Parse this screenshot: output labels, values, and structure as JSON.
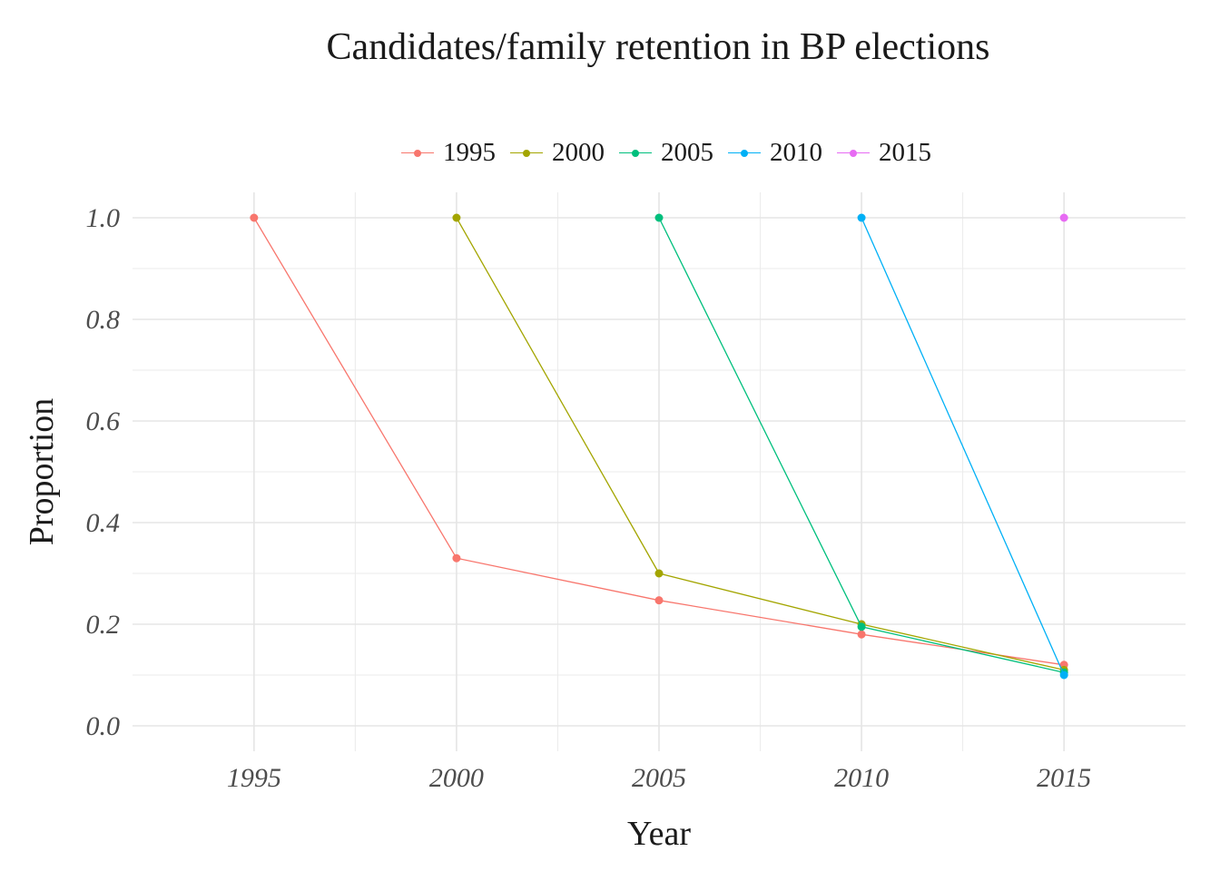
{
  "chart_data": {
    "type": "line",
    "title": "Candidates/family retention in BP elections",
    "xlabel": "Year",
    "ylabel": "Proportion",
    "xlim": [
      1992,
      2018
    ],
    "ylim": [
      -0.05,
      1.05
    ],
    "x_ticks": [
      "1995",
      "2000",
      "2005",
      "2010",
      "2015"
    ],
    "y_ticks": [
      "0.0",
      "0.2",
      "0.4",
      "0.6",
      "0.8",
      "1.0"
    ],
    "grid": true,
    "legend_position": "top",
    "series": [
      {
        "name": "1995",
        "color": "#F8766D",
        "x": [
          1995,
          2000,
          2005,
          2010,
          2015
        ],
        "y": [
          1.0,
          0.33,
          0.247,
          0.18,
          0.12
        ]
      },
      {
        "name": "2000",
        "color": "#A3A500",
        "x": [
          2000,
          2005,
          2010,
          2015
        ],
        "y": [
          1.0,
          0.3,
          0.2,
          0.11
        ]
      },
      {
        "name": "2005",
        "color": "#00BF7D",
        "x": [
          2005,
          2010,
          2015
        ],
        "y": [
          1.0,
          0.195,
          0.105
        ]
      },
      {
        "name": "2010",
        "color": "#00B0F6",
        "x": [
          2010,
          2015
        ],
        "y": [
          1.0,
          0.1
        ]
      },
      {
        "name": "2015",
        "color": "#E76BF3",
        "x": [
          2015
        ],
        "y": [
          1.0
        ]
      }
    ]
  }
}
